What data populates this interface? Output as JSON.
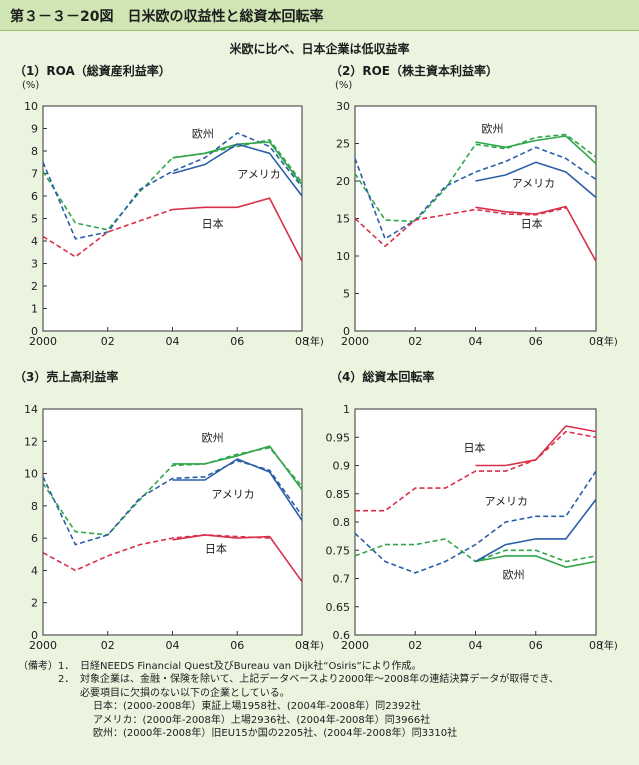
{
  "figure": {
    "title": "第３－３－20図　日米欧の収益性と総資本回転率",
    "subtitle": "米欧に比べ、日本企業は低収益率"
  },
  "colors": {
    "japan": "#d9304a",
    "usa": "#2a5fa8",
    "europe": "#2fa64a",
    "header_bg": "#cfe6b4",
    "page_bg": "#ebf4df",
    "plot_bg": "#ffffff"
  },
  "chart_data": [
    {
      "type": "line",
      "title": "（1）ROA（総資産利益率）",
      "unit": "(%)",
      "x_ticks": [
        "2000",
        "02",
        "04",
        "06",
        "08"
      ],
      "x_unit": "(年)",
      "xlim": [
        2000,
        2008
      ],
      "ylim": [
        0,
        10
      ],
      "y_ticks": [
        "0",
        "1",
        "2",
        "3",
        "4",
        "5",
        "6",
        "7",
        "8",
        "9",
        "10"
      ],
      "series": [
        {
          "name": "欧州",
          "style": "solid",
          "x": [
            2004,
            2005,
            2006,
            2007,
            2008
          ],
          "values": [
            7.7,
            7.9,
            8.3,
            8.4,
            6.5
          ]
        },
        {
          "name": "欧州",
          "style": "dashed",
          "x": [
            2000,
            2001,
            2002,
            2003,
            2004,
            2005,
            2006,
            2007,
            2008
          ],
          "values": [
            7.1,
            4.8,
            4.5,
            6.2,
            7.7,
            7.9,
            8.2,
            8.5,
            6.6
          ]
        },
        {
          "name": "アメリカ",
          "style": "solid",
          "x": [
            2004,
            2005,
            2006,
            2007,
            2008
          ],
          "values": [
            7.0,
            7.4,
            8.3,
            7.9,
            6.0
          ]
        },
        {
          "name": "アメリカ",
          "style": "dashed",
          "x": [
            2000,
            2001,
            2002,
            2003,
            2004,
            2005,
            2006,
            2007,
            2008
          ],
          "values": [
            7.5,
            4.1,
            4.4,
            6.3,
            7.1,
            7.7,
            8.8,
            8.2,
            6.4
          ]
        },
        {
          "name": "日本",
          "style": "solid",
          "x": [
            2004,
            2005,
            2006,
            2007,
            2008
          ],
          "values": [
            5.4,
            5.5,
            5.5,
            5.9,
            3.1
          ]
        },
        {
          "name": "日本",
          "style": "dashed",
          "x": [
            2000,
            2001,
            2002,
            2003,
            2004
          ],
          "values": [
            4.2,
            3.3,
            4.4,
            4.9,
            5.4
          ]
        }
      ],
      "labels": [
        {
          "text": "欧州",
          "x": 2004.6,
          "y": 8.6,
          "color": "#1d1d1d"
        },
        {
          "text": "アメリカ",
          "x": 2006.0,
          "y": 6.8,
          "color": "#1d1d1d"
        },
        {
          "text": "日本",
          "x": 2004.9,
          "y": 4.6,
          "color": "#1d1d1d"
        }
      ]
    },
    {
      "type": "line",
      "title": "（2）ROE（株主資本利益率）",
      "unit": "(%)",
      "x_ticks": [
        "2000",
        "02",
        "04",
        "06",
        "08"
      ],
      "x_unit": "(年)",
      "xlim": [
        2000,
        2008
      ],
      "ylim": [
        0,
        30
      ],
      "y_ticks": [
        "0",
        "5",
        "10",
        "15",
        "20",
        "25",
        "30"
      ],
      "series": [
        {
          "name": "欧州",
          "style": "solid",
          "x": [
            2004,
            2005,
            2006,
            2007,
            2008
          ],
          "values": [
            25.2,
            24.5,
            25.4,
            26.0,
            22.3
          ]
        },
        {
          "name": "欧州",
          "style": "dashed",
          "x": [
            2000,
            2001,
            2002,
            2003,
            2004,
            2005,
            2006,
            2007,
            2008
          ],
          "values": [
            21.0,
            14.8,
            14.6,
            19.0,
            24.9,
            24.3,
            25.8,
            26.2,
            23.2
          ]
        },
        {
          "name": "アメリカ",
          "style": "solid",
          "x": [
            2004,
            2005,
            2006,
            2007,
            2008
          ],
          "values": [
            20.0,
            20.8,
            22.5,
            21.2,
            17.8
          ]
        },
        {
          "name": "アメリカ",
          "style": "dashed",
          "x": [
            2000,
            2001,
            2002,
            2003,
            2004,
            2005,
            2006,
            2007,
            2008
          ],
          "values": [
            23.0,
            12.3,
            14.8,
            19.3,
            21.2,
            22.6,
            24.5,
            23.0,
            20.2
          ]
        },
        {
          "name": "日本",
          "style": "solid",
          "x": [
            2004,
            2005,
            2006,
            2007,
            2008
          ],
          "values": [
            16.5,
            15.9,
            15.6,
            16.6,
            9.3
          ]
        },
        {
          "name": "日本",
          "style": "dashed",
          "x": [
            2000,
            2001,
            2002,
            2003,
            2004,
            2005,
            2006,
            2007
          ],
          "values": [
            15.0,
            11.3,
            14.8,
            15.5,
            16.2,
            15.6,
            15.5,
            16.4
          ]
        }
      ],
      "labels": [
        {
          "text": "欧州",
          "x": 2004.2,
          "y": 26.5,
          "color": "#1d1d1d"
        },
        {
          "text": "アメリカ",
          "x": 2005.2,
          "y": 19.2,
          "color": "#1d1d1d"
        },
        {
          "text": "日本",
          "x": 2005.5,
          "y": 13.8,
          "color": "#1d1d1d"
        }
      ]
    },
    {
      "type": "line",
      "title": "（3）売上高利益率",
      "unit": "",
      "x_ticks": [
        "2000",
        "02",
        "04",
        "06",
        "08"
      ],
      "x_unit": "(年)",
      "xlim": [
        2000,
        2008
      ],
      "ylim": [
        0,
        14
      ],
      "y_ticks": [
        "0",
        "2",
        "4",
        "6",
        "8",
        "10",
        "12",
        "14"
      ],
      "series": [
        {
          "name": "欧州",
          "style": "solid",
          "x": [
            2004,
            2005,
            2006,
            2007,
            2008
          ],
          "values": [
            10.6,
            10.6,
            11.1,
            11.7,
            9.0
          ]
        },
        {
          "name": "欧州",
          "style": "dashed",
          "x": [
            2000,
            2001,
            2002,
            2003,
            2004,
            2005,
            2006,
            2007,
            2008
          ],
          "values": [
            9.4,
            6.4,
            6.2,
            8.4,
            10.5,
            10.6,
            11.2,
            11.6,
            9.2
          ]
        },
        {
          "name": "アメリカ",
          "style": "solid",
          "x": [
            2004,
            2005,
            2006,
            2007,
            2008
          ],
          "values": [
            9.6,
            9.6,
            10.9,
            10.1,
            7.1
          ]
        },
        {
          "name": "アメリカ",
          "style": "dashed",
          "x": [
            2000,
            2001,
            2002,
            2003,
            2004,
            2005,
            2006,
            2007,
            2008
          ],
          "values": [
            9.8,
            5.6,
            6.2,
            8.5,
            9.7,
            9.8,
            10.8,
            10.2,
            7.4
          ]
        },
        {
          "name": "日本",
          "style": "solid",
          "x": [
            2004,
            2005,
            2006,
            2007,
            2008
          ],
          "values": [
            5.9,
            6.2,
            6.0,
            6.1,
            3.3
          ]
        },
        {
          "name": "日本",
          "style": "dashed",
          "x": [
            2000,
            2001,
            2002,
            2003,
            2004,
            2005,
            2006,
            2007
          ],
          "values": [
            5.1,
            4.0,
            4.9,
            5.6,
            6.0,
            6.2,
            6.1,
            6.0
          ]
        }
      ],
      "labels": [
        {
          "text": "欧州",
          "x": 2004.9,
          "y": 12.0,
          "color": "#1d1d1d"
        },
        {
          "text": "アメリカ",
          "x": 2005.2,
          "y": 8.5,
          "color": "#1d1d1d"
        },
        {
          "text": "日本",
          "x": 2005.0,
          "y": 5.1,
          "color": "#1d1d1d"
        }
      ]
    },
    {
      "type": "line",
      "title": "（4）総資本回転率",
      "unit": "",
      "x_ticks": [
        "2000",
        "02",
        "04",
        "06",
        "08"
      ],
      "x_unit": "(年)",
      "xlim": [
        2000,
        2008
      ],
      "ylim": [
        0.6,
        1.0
      ],
      "y_ticks": [
        "0.6",
        "0.65",
        "0.7",
        "0.75",
        "0.8",
        "0.85",
        "0.9",
        "0.95",
        "1"
      ],
      "series": [
        {
          "name": "欧州",
          "style": "solid",
          "x": [
            2004,
            2005,
            2006,
            2007,
            2008
          ],
          "values": [
            0.73,
            0.74,
            0.74,
            0.72,
            0.73
          ]
        },
        {
          "name": "欧州",
          "style": "dashed",
          "x": [
            2000,
            2001,
            2002,
            2003,
            2004,
            2005,
            2006,
            2007,
            2008
          ],
          "values": [
            0.74,
            0.76,
            0.76,
            0.77,
            0.73,
            0.75,
            0.75,
            0.73,
            0.74
          ]
        },
        {
          "name": "アメリカ",
          "style": "solid",
          "x": [
            2004,
            2005,
            2006,
            2007,
            2008
          ],
          "values": [
            0.73,
            0.76,
            0.77,
            0.77,
            0.84
          ]
        },
        {
          "name": "アメリカ",
          "style": "dashed",
          "x": [
            2000,
            2001,
            2002,
            2003,
            2004,
            2005,
            2006,
            2007,
            2008
          ],
          "values": [
            0.78,
            0.73,
            0.71,
            0.73,
            0.76,
            0.8,
            0.81,
            0.81,
            0.89
          ]
        },
        {
          "name": "日本",
          "style": "solid",
          "x": [
            2004,
            2005,
            2006,
            2007,
            2008
          ],
          "values": [
            0.9,
            0.9,
            0.91,
            0.97,
            0.96
          ]
        },
        {
          "name": "日本",
          "style": "dashed",
          "x": [
            2000,
            2001,
            2002,
            2003,
            2004,
            2005,
            2006,
            2007,
            2008
          ],
          "values": [
            0.82,
            0.82,
            0.86,
            0.86,
            0.89,
            0.89,
            0.91,
            0.96,
            0.95
          ]
        }
      ],
      "labels": [
        {
          "text": "日本",
          "x": 2003.6,
          "y": 0.925,
          "color": "#1d1d1d"
        },
        {
          "text": "アメリカ",
          "x": 2004.3,
          "y": 0.83,
          "color": "#1d1d1d"
        },
        {
          "text": "欧州",
          "x": 2004.9,
          "y": 0.7,
          "color": "#1d1d1d"
        }
      ]
    }
  ],
  "notes": {
    "head": "（備考）",
    "items": [
      {
        "num": "1．",
        "text": "日経NEEDS Financial Quest及びBureau van Dijk社“Osiris”により作成。"
      },
      {
        "num": "2．",
        "text": "対象企業は、金融・保険を除いて、上記データベースより2000年～2008年の連結決算データが取得でき、"
      }
    ],
    "continuation": "必要項目に欠損のない以下の企業としている。",
    "details": [
      "日本：(2000-2008年）東証上場1958社、(2004年-2008年）同2392社",
      "アメリカ：(2000年-2008年）上場2936社、(2004年-2008年）同3966社",
      "欧州：(2000年-2008年）旧EU15か国の2205社、(2004年-2008年）同3310社"
    ]
  }
}
